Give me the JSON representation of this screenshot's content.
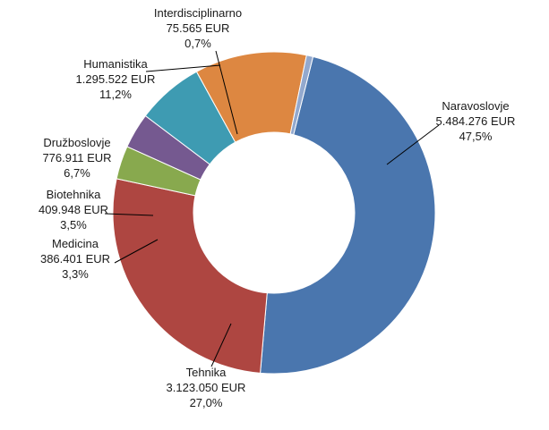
{
  "chart_data": {
    "type": "pie",
    "donut": true,
    "slices": [
      {
        "label": "Naravoslovje",
        "amount": "5.484.276 EUR",
        "value": 5484276,
        "percent": "47,5%",
        "color": "#4A76AE"
      },
      {
        "label": "Tehnika",
        "amount": "3.123.050 EUR",
        "value": 3123050,
        "percent": "27,0%",
        "color": "#AE4641"
      },
      {
        "label": "Medicina",
        "amount": "386.401 EUR",
        "value": 386401,
        "percent": "3,3%",
        "color": "#88A94E"
      },
      {
        "label": "Biotehnika",
        "amount": "409.948 EUR",
        "value": 409948,
        "percent": "3,5%",
        "color": "#755990"
      },
      {
        "label": "Družboslovje",
        "amount": "776.911 EUR",
        "value": 776911,
        "percent": "6,7%",
        "color": "#3E9BB2"
      },
      {
        "label": "Humanistika",
        "amount": "1.295.522 EUR",
        "value": 1295522,
        "percent": "11,2%",
        "color": "#DD8741"
      },
      {
        "label": "Interdisciplinarno",
        "amount": "75.565 EUR",
        "value": 75565,
        "percent": "0,7%",
        "color": "#93A9CE"
      }
    ]
  }
}
